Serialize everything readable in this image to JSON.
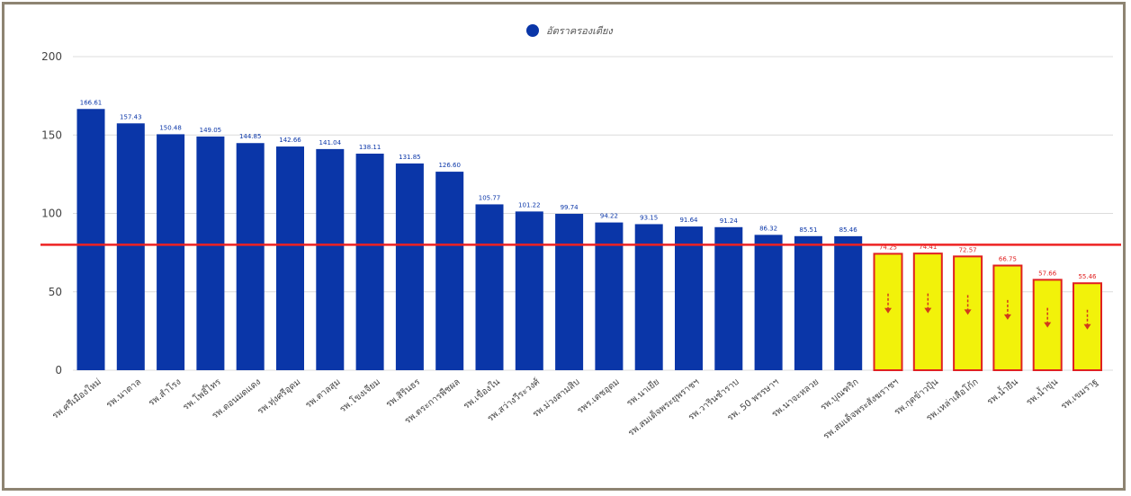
{
  "colors": {
    "bar": "#0a36a8",
    "highlight_fill": "#f2f20a",
    "highlight_border": "#e02020",
    "threshold_line": "#ee2222",
    "value_label": "#0a36a8",
    "highlight_value_label": "#e02020",
    "grid": "#dcdcdc",
    "axis_text": "#444444",
    "arrow": "#d23a1c"
  },
  "chart_data": {
    "type": "bar",
    "legend": {
      "label": "อัตราครองเตียง",
      "position": "top-center"
    },
    "ylim": [
      0,
      200
    ],
    "yticks": [
      "200",
      "150",
      "100",
      "50",
      "0"
    ],
    "grid": true,
    "threshold": 80,
    "categories": [
      "รพ.ศรีเมืองใหม่",
      "รพ.นาตาล",
      "รพ.สำโรง",
      "รพ.โพธิ์ไทร",
      "รพ.ดอนมดแดง",
      "รพ.ทุ่งศรีอุดม",
      "รพ.ตาลสุม",
      "รพ.โขงเจียม",
      "รพ.สิรินธร",
      "รพ.ตระการพืชผล",
      "รพ.เขื่องใน",
      "รพ.สว่างวีระวงศ์",
      "รพ.ม่วงสามสิบ",
      "รพร.เดชอุดม",
      "รพ.นาเยีย",
      "รพ.สมเด็จพระยุพราชฯ",
      "รพ.วารินชำราบ",
      "รพ. 50 พรรษาฯ",
      "รพ.นาจะหลวย",
      "รพ.บุณฑริก",
      "รพ.สมเด็จพระสังฆราชฯ",
      "รพ.กุดข้าวปุ้น",
      "รพ.เหล่าเสือโก้ก",
      "รพ.น้ำยืน",
      "รพ.น้ำขุ่น",
      "รพ.เขมราฐ"
    ],
    "values": [
      166.61,
      157.43,
      150.48,
      149.05,
      144.85,
      142.66,
      141.04,
      138.11,
      131.85,
      126.6,
      105.77,
      101.22,
      99.74,
      94.22,
      93.15,
      91.64,
      91.24,
      86.32,
      85.51,
      85.46,
      74.25,
      74.41,
      72.57,
      66.75,
      57.66,
      55.46
    ],
    "value_labels": [
      "166.61",
      "157.43",
      "150.48",
      "149.05",
      "144.85",
      "142.66",
      "141.04",
      "138.11",
      "131.85",
      "126.60",
      "105.77",
      "101.22",
      "99.74",
      "94.22",
      "93.15",
      "91.64",
      "91.24",
      "86.32",
      "85.51",
      "85.46",
      "74.25",
      "74.41",
      "72.57",
      "66.75",
      "57.66",
      "55.46"
    ],
    "highlighted_from_index": 20
  }
}
